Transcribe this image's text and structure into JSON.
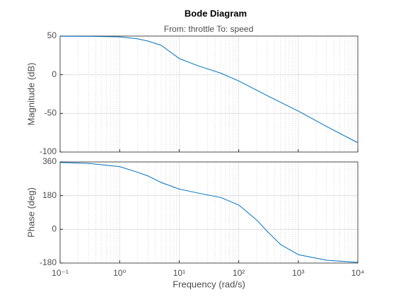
{
  "chart_data": [
    {
      "type": "line",
      "title": "Bode Diagram",
      "subtitle": "From: throttle  To: speed",
      "ylabel": "Magnitude (dB)",
      "xscale": "log",
      "grid": true,
      "color": "#0072bd",
      "xlim": [
        0.1,
        10000
      ],
      "xticks": [
        0.1,
        1,
        10,
        100,
        1000,
        10000
      ],
      "ylim": [
        -100,
        50
      ],
      "yticks": [
        -100,
        -50,
        0,
        50
      ],
      "x": [
        0.1,
        0.3,
        1,
        2,
        3,
        5,
        10,
        20,
        50,
        100,
        300,
        1000,
        3000,
        10000
      ],
      "values": [
        49.8,
        49.7,
        49,
        46.5,
        43.5,
        38,
        21,
        12,
        2,
        -8,
        -27,
        -47,
        -67,
        -88
      ]
    },
    {
      "type": "line",
      "ylabel": "Phase (deg)",
      "xlabel": "Frequency  (rad/s)",
      "xscale": "log",
      "grid": true,
      "color": "#0072bd",
      "xlim": [
        0.1,
        10000
      ],
      "xticks": [
        {
          "value": 0.1,
          "label": "10⁻¹"
        },
        {
          "value": 1,
          "label": "10⁰"
        },
        {
          "value": 10,
          "label": "10¹"
        },
        {
          "value": 100,
          "label": "10²"
        },
        {
          "value": 1000,
          "label": "10³"
        },
        {
          "value": 10000,
          "label": "10⁴"
        }
      ],
      "ylim": [
        -180,
        360
      ],
      "yticks": [
        -180,
        0,
        180,
        360
      ],
      "x": [
        0.1,
        0.3,
        1,
        2,
        3,
        5,
        10,
        20,
        50,
        100,
        200,
        300,
        500,
        1000,
        3000,
        10000
      ],
      "values": [
        357,
        352,
        335,
        305,
        285,
        250,
        215,
        195,
        170,
        130,
        50,
        -10,
        -80,
        -135,
        -165,
        -176
      ]
    }
  ]
}
